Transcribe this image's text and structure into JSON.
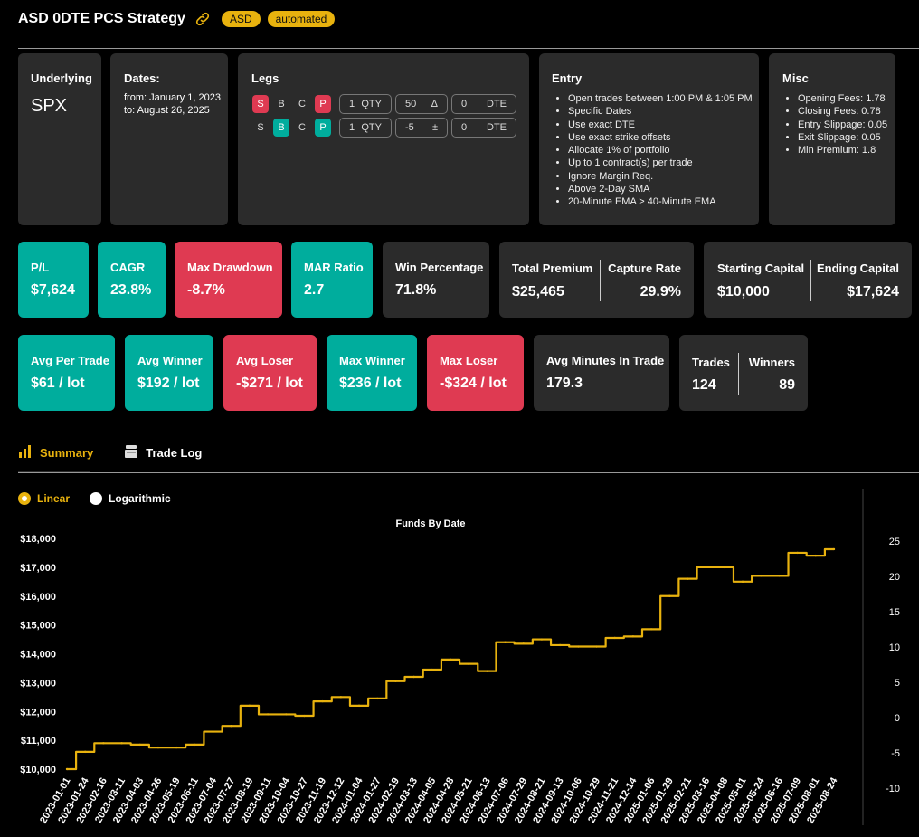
{
  "header": {
    "title": "ASD 0DTE PCS Strategy",
    "badges": [
      "ASD",
      "automated"
    ]
  },
  "underlying": {
    "label": "Underlying",
    "value": "SPX"
  },
  "dates": {
    "label": "Dates:",
    "from": "from: January 1, 2023",
    "to": "to: August 26, 2025"
  },
  "legs": {
    "label": "Legs",
    "rows": [
      {
        "s": "S",
        "b": "B",
        "c": "C",
        "p": "P",
        "qty": "1",
        "qty_label": "QTY",
        "strike": "50",
        "strike_symbol": "Δ",
        "dte": "0",
        "dte_label": "DTE"
      },
      {
        "s": "S",
        "b": "B",
        "c": "C",
        "p": "P",
        "qty": "1",
        "qty_label": "QTY",
        "strike": "-5",
        "strike_symbol": "±",
        "dte": "0",
        "dte_label": "DTE"
      }
    ]
  },
  "entry": {
    "label": "Entry",
    "items": [
      "Open trades between 1:00 PM & 1:05 PM",
      "Specific Dates",
      "Use exact DTE",
      "Use exact strike offsets",
      "Allocate 1% of portfolio",
      "Up to 1 contract(s) per trade",
      "Ignore Margin Req.",
      "Above 2-Day SMA",
      "20-Minute EMA > 40-Minute EMA"
    ]
  },
  "misc": {
    "label": "Misc",
    "items": [
      "Opening Fees: 1.78",
      "Closing Fees: 0.78",
      "Entry Slippage: 0.05",
      "Exit Slippage: 0.05",
      "Min Premium: 1.8"
    ]
  },
  "stats_row1": {
    "pl": {
      "label": "P/L",
      "value": "$7,624"
    },
    "cagr": {
      "label": "CAGR",
      "value": "23.8%"
    },
    "max_drawdown": {
      "label": "Max Drawdown",
      "value": "-8.7%"
    },
    "mar_ratio": {
      "label": "MAR Ratio",
      "value": "2.7"
    },
    "win_pct": {
      "label": "Win Percentage",
      "value": "71.8%"
    },
    "total_premium": {
      "label": "Total Premium",
      "value": "$25,465"
    },
    "capture_rate": {
      "label": "Capture Rate",
      "value": "29.9%"
    },
    "starting_capital": {
      "label": "Starting Capital",
      "value": "$10,000"
    },
    "ending_capital": {
      "label": "Ending Capital",
      "value": "$17,624"
    }
  },
  "stats_row2": {
    "avg_per_trade": {
      "label": "Avg Per Trade",
      "value": "$61 / lot"
    },
    "avg_winner": {
      "label": "Avg Winner",
      "value": "$192 / lot"
    },
    "avg_loser": {
      "label": "Avg Loser",
      "value": "-$271 / lot"
    },
    "max_winner": {
      "label": "Max Winner",
      "value": "$236 / lot"
    },
    "max_loser": {
      "label": "Max Loser",
      "value": "-$324 / lot"
    },
    "avg_minutes": {
      "label": "Avg Minutes In Trade",
      "value": "179.3"
    },
    "trades": {
      "label": "Trades",
      "value": "124"
    },
    "winners": {
      "label": "Winners",
      "value": "89"
    }
  },
  "tabs": {
    "summary": "Summary",
    "trade_log": "Trade Log"
  },
  "scale": {
    "linear": "Linear",
    "logarithmic": "Logarithmic",
    "selected": "linear"
  },
  "colors": {
    "accent": "#e8b20e",
    "teal": "#00ad9d",
    "red": "#df3a52",
    "card": "#2b2b2b"
  },
  "chart_data": {
    "type": "line",
    "title": "Funds By Date",
    "xlabel": "",
    "ylabel": "",
    "x": [
      "2023-01-01",
      "2023-01-24",
      "2023-02-16",
      "2023-03-11",
      "2023-04-03",
      "2023-04-26",
      "2023-05-19",
      "2023-06-11",
      "2023-07-04",
      "2023-07-27",
      "2023-08-19",
      "2023-09-11",
      "2023-10-04",
      "2023-10-27",
      "2023-11-19",
      "2023-12-12",
      "2024-01-04",
      "2024-01-27",
      "2024-02-19",
      "2024-03-13",
      "2024-04-05",
      "2024-04-28",
      "2024-05-21",
      "2024-06-13",
      "2024-07-06",
      "2024-07-29",
      "2024-08-21",
      "2024-09-13",
      "2024-10-06",
      "2024-10-29",
      "2024-11-21",
      "2024-12-14",
      "2025-01-06",
      "2025-01-29",
      "2025-02-21",
      "2025-03-16",
      "2025-04-08",
      "2025-05-01",
      "2025-05-24",
      "2025-06-16",
      "2025-07-09",
      "2025-08-01",
      "2025-08-24"
    ],
    "series": [
      {
        "values": [
          10000,
          10600,
          10900,
          10900,
          10850,
          10750,
          10750,
          10850,
          11300,
          11500,
          12200,
          11900,
          11900,
          11850,
          12350,
          12500,
          12200,
          12450,
          13050,
          13200,
          13450,
          13800,
          13650,
          13400,
          14400,
          14350,
          14500,
          14300,
          14250,
          14250,
          14550,
          14600,
          14850,
          16000,
          16600,
          17000,
          17000,
          16500,
          16700,
          16700,
          17500,
          17400,
          17624
        ]
      }
    ],
    "ylim": [
      10000,
      18000
    ],
    "y_ticks": [
      "$10,000",
      "$11,000",
      "$12,000",
      "$13,000",
      "$14,000",
      "$15,000",
      "$16,000",
      "$17,000",
      "$18,000"
    ],
    "y2_ticks": [
      "-10",
      "-5",
      "0",
      "5",
      "10",
      "15",
      "20",
      "25"
    ],
    "y2lim": [
      -10,
      25
    ],
    "grid": false,
    "legend": "none"
  }
}
